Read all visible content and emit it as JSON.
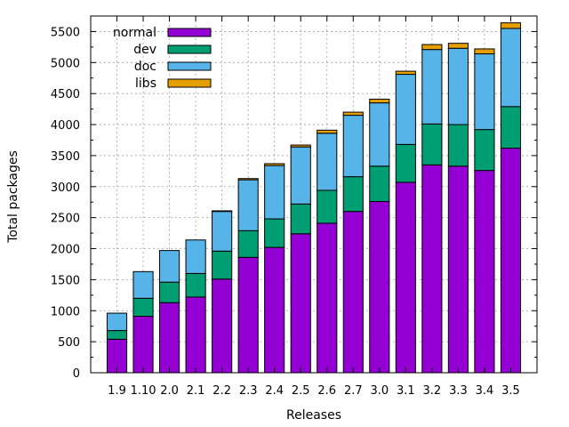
{
  "chart_data": {
    "type": "bar",
    "stacked": true,
    "xlabel": "Releases",
    "ylabel": "Total packages",
    "ylim": [
      0,
      5750
    ],
    "yticks": [
      0,
      500,
      1000,
      1500,
      2000,
      2500,
      3000,
      3500,
      4000,
      4500,
      5000,
      5500
    ],
    "grid": true,
    "legend_position": "top-left",
    "categories": [
      "1.9",
      "1.10",
      "2.0",
      "2.1",
      "2.2",
      "2.3",
      "2.4",
      "2.5",
      "2.6",
      "2.7",
      "3.0",
      "3.1",
      "3.2",
      "3.3",
      "3.4",
      "3.5"
    ],
    "series": [
      {
        "name": "normal",
        "color": "#9400d3",
        "values": [
          540,
          910,
          1130,
          1220,
          1510,
          1860,
          2020,
          2240,
          2410,
          2600,
          2760,
          3070,
          3350,
          3330,
          3260,
          3620
        ]
      },
      {
        "name": "dev",
        "color": "#009e73",
        "values": [
          140,
          290,
          330,
          380,
          450,
          430,
          460,
          480,
          530,
          560,
          570,
          610,
          660,
          670,
          660,
          670
        ]
      },
      {
        "name": "doc",
        "color": "#56b4e9",
        "values": [
          280,
          430,
          510,
          540,
          640,
          820,
          860,
          920,
          920,
          990,
          1020,
          1130,
          1200,
          1230,
          1220,
          1260
        ]
      },
      {
        "name": "libs",
        "color": "#e69f00",
        "values": [
          0,
          0,
          0,
          0,
          10,
          20,
          30,
          30,
          50,
          50,
          60,
          50,
          80,
          80,
          80,
          90
        ]
      }
    ]
  }
}
